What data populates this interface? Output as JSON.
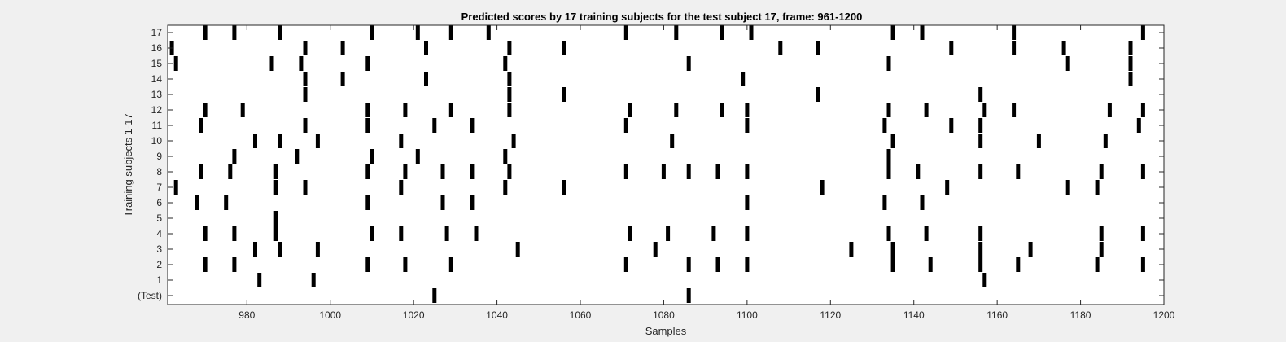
{
  "chart_data": {
    "type": "scatter",
    "title": "Predicted scores by 17 training subjects for the test subject 17, frame: 961-1200",
    "xlabel": "Samples",
    "ylabel": "Training subjects 1-17",
    "xlim": [
      961,
      1200
    ],
    "x_ticks": [
      980,
      1000,
      1020,
      1040,
      1060,
      1080,
      1100,
      1120,
      1140,
      1160,
      1180,
      1200
    ],
    "y_ticks": [
      "(Test)",
      "1",
      "2",
      "3",
      "4",
      "5",
      "6",
      "7",
      "8",
      "9",
      "10",
      "11",
      "12",
      "13",
      "14",
      "15",
      "16",
      "17"
    ],
    "grid": false,
    "marker": "vertical bar",
    "color": "#000000",
    "rows": [
      {
        "label": "(Test)",
        "x": [
          1025,
          1086
        ]
      },
      {
        "label": "1",
        "x": [
          983,
          996,
          1157
        ]
      },
      {
        "label": "2",
        "x": [
          970,
          977,
          1009,
          1018,
          1029,
          1071,
          1086,
          1093,
          1100,
          1135,
          1144,
          1156,
          1165,
          1184,
          1195
        ]
      },
      {
        "label": "3",
        "x": [
          982,
          988,
          997,
          1045,
          1078,
          1125,
          1135,
          1156,
          1168,
          1185
        ]
      },
      {
        "label": "4",
        "x": [
          970,
          977,
          987,
          1010,
          1017,
          1028,
          1035,
          1072,
          1081,
          1092,
          1100,
          1134,
          1143,
          1156,
          1185,
          1195
        ]
      },
      {
        "label": "5",
        "x": [
          987
        ]
      },
      {
        "label": "6",
        "x": [
          968,
          975,
          1009,
          1027,
          1034,
          1100,
          1133,
          1142
        ]
      },
      {
        "label": "7",
        "x": [
          963,
          987,
          994,
          1017,
          1042,
          1056,
          1118,
          1148,
          1177,
          1184
        ]
      },
      {
        "label": "8",
        "x": [
          969,
          976,
          987,
          1009,
          1018,
          1027,
          1034,
          1043,
          1071,
          1080,
          1086,
          1093,
          1100,
          1134,
          1141,
          1156,
          1165,
          1185,
          1195
        ]
      },
      {
        "label": "9",
        "x": [
          977,
          992,
          1010,
          1021,
          1042,
          1134
        ]
      },
      {
        "label": "10",
        "x": [
          982,
          988,
          997,
          1017,
          1044,
          1082,
          1135,
          1156,
          1170,
          1186
        ]
      },
      {
        "label": "11",
        "x": [
          969,
          994,
          1009,
          1025,
          1034,
          1071,
          1100,
          1133,
          1149,
          1156,
          1194
        ]
      },
      {
        "label": "12",
        "x": [
          970,
          979,
          1009,
          1018,
          1029,
          1043,
          1072,
          1083,
          1094,
          1100,
          1134,
          1143,
          1157,
          1164,
          1187,
          1195
        ]
      },
      {
        "label": "13",
        "x": [
          994,
          1043,
          1056,
          1117,
          1156
        ]
      },
      {
        "label": "14",
        "x": [
          994,
          1003,
          1023,
          1043,
          1099,
          1192
        ]
      },
      {
        "label": "15",
        "x": [
          963,
          986,
          993,
          1009,
          1042,
          1086,
          1134,
          1177,
          1192
        ]
      },
      {
        "label": "16",
        "x": [
          962,
          994,
          1003,
          1023,
          1043,
          1056,
          1108,
          1117,
          1149,
          1164,
          1176,
          1192
        ]
      },
      {
        "label": "17",
        "x": [
          970,
          977,
          988,
          1010,
          1021,
          1029,
          1038,
          1071,
          1083,
          1094,
          1101,
          1135,
          1142,
          1164,
          1195
        ]
      }
    ]
  }
}
